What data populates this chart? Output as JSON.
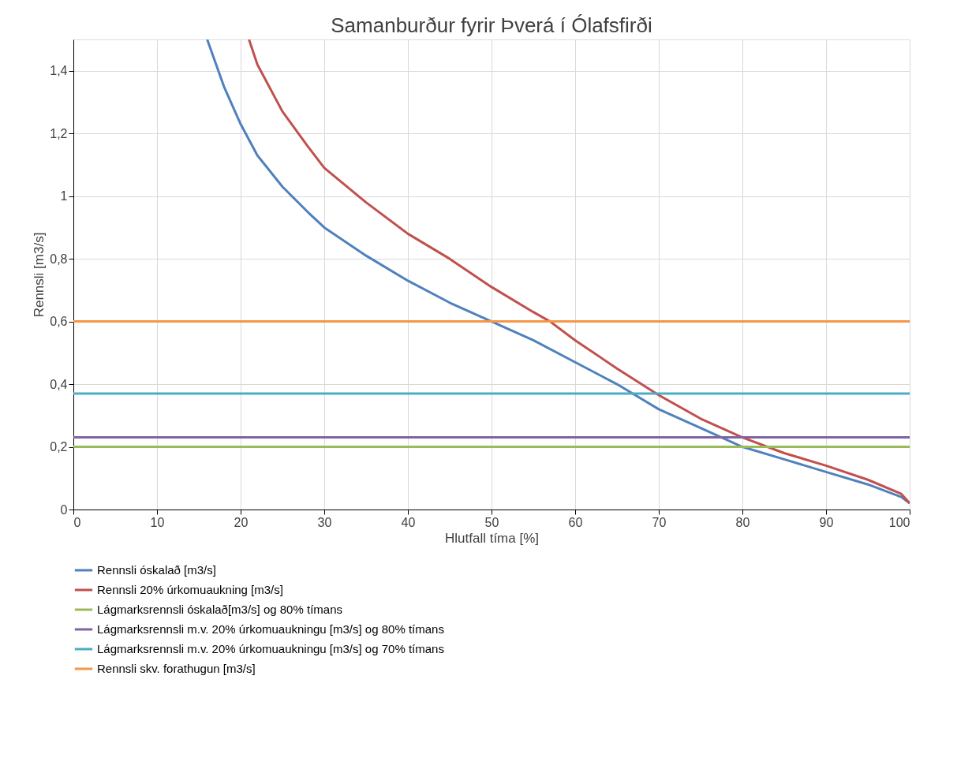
{
  "chart_data": {
    "type": "line",
    "title": "Samanburður fyrir Þverá í Ólafsfirði",
    "xlabel": "Hlutfall tíma [%]",
    "ylabel": "Rennsli [m3/s]",
    "series": [
      {
        "name": "Rennsli óskalað [m3/s]",
        "color": "#4f81bd",
        "x": [
          16,
          18,
          20,
          22,
          25,
          28,
          30,
          35,
          40,
          45,
          50,
          55,
          60,
          65,
          70,
          75,
          80,
          85,
          90,
          95,
          99,
          100
        ],
        "values": [
          1.5,
          1.35,
          1.23,
          1.13,
          1.03,
          0.95,
          0.9,
          0.81,
          0.73,
          0.66,
          0.6,
          0.54,
          0.47,
          0.4,
          0.32,
          0.26,
          0.2,
          0.16,
          0.12,
          0.08,
          0.04,
          0.02
        ]
      },
      {
        "name": "Rennsli 20% úrkomuaukning [m3/s]",
        "color": "#c0504d",
        "x": [
          21,
          22,
          25,
          28,
          30,
          35,
          40,
          45,
          50,
          55,
          57,
          60,
          65,
          70,
          75,
          80,
          85,
          90,
          95,
          99,
          100
        ],
        "values": [
          1.5,
          1.42,
          1.27,
          1.16,
          1.09,
          0.98,
          0.88,
          0.8,
          0.71,
          0.63,
          0.6,
          0.54,
          0.45,
          0.365,
          0.29,
          0.23,
          0.18,
          0.14,
          0.095,
          0.05,
          0.02
        ]
      },
      {
        "name": "Lágmarksrennsli óskalað[m3/s] og 80% tímans",
        "color": "#9bbb59",
        "x": [
          0,
          100
        ],
        "values": [
          0.2,
          0.2
        ]
      },
      {
        "name": "Lágmarksrennsli m.v. 20% úrkomuaukningu [m3/s] og 80% tímans",
        "color": "#8064a2",
        "x": [
          0,
          100
        ],
        "values": [
          0.23,
          0.23
        ]
      },
      {
        "name": "Lágmarksrennsli m.v. 20% úrkomuaukningu [m3/s] og 70% tímans",
        "color": "#4bacc6",
        "x": [
          0,
          100
        ],
        "values": [
          0.37,
          0.37
        ]
      },
      {
        "name": "Rennsli skv. forathugun [m3/s]",
        "color": "#f79646",
        "x": [
          0,
          100
        ],
        "values": [
          0.6,
          0.6
        ]
      }
    ],
    "xlim": [
      0,
      100
    ],
    "xticks": [
      0,
      10,
      20,
      30,
      40,
      50,
      60,
      70,
      80,
      90,
      100
    ],
    "ylim": [
      0,
      1.5
    ],
    "yticks": [
      0,
      {
        "value": 0.2,
        "label": "0,2"
      },
      {
        "value": 0.4,
        "label": "0,4"
      },
      {
        "value": 0.6,
        "label": "0,6"
      },
      {
        "value": 0.8,
        "label": "0,8"
      },
      1,
      {
        "value": 1.2,
        "label": "1,2"
      },
      {
        "value": 1.4,
        "label": "1,4"
      }
    ],
    "grid": true,
    "legend": "bottom",
    "marker": "none",
    "line_style": "solid"
  }
}
